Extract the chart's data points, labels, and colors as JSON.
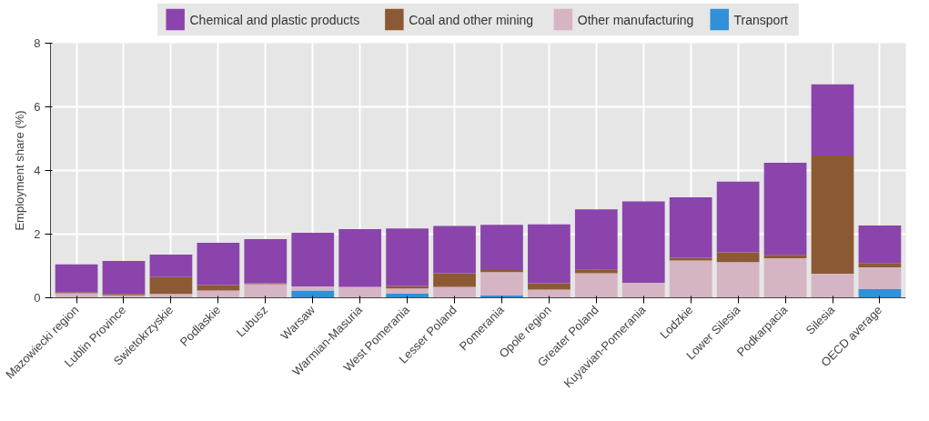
{
  "chart_data": {
    "type": "bar",
    "stacked": true,
    "ylabel": "Employment share (%)",
    "categories": [
      "Mazowiecki region",
      "Lublin Province",
      "Swietokrzyskie",
      "Podlaskie",
      "Lubusz",
      "Warsaw",
      "Warmian-Masuria",
      "West Pomerania",
      "Lesser Poland",
      "Pomerania",
      "Opole region",
      "Greater Poland",
      "Kuyavian-Pomerania",
      "Lodzkie",
      "Lower Silesia",
      "Podkarpacia",
      "Silesia",
      "OECD average"
    ],
    "series": [
      {
        "name": "Transport",
        "color": "#3090d8",
        "values": [
          0,
          0,
          0,
          0,
          0,
          0.23,
          0,
          0.13,
          0,
          0.08,
          0,
          0,
          0,
          0,
          0,
          0,
          0,
          0.28
        ]
      },
      {
        "name": "Other manufacturing",
        "color": "#d5b5c3",
        "values": [
          0.14,
          0.08,
          0.12,
          0.23,
          0.43,
          0.13,
          0.34,
          0.16,
          0.34,
          0.73,
          0.26,
          0.77,
          0.47,
          1.17,
          1.12,
          1.24,
          0.76,
          0.68
        ]
      },
      {
        "name": "Coal and other mining",
        "color": "#8b5a35",
        "values": [
          0.04,
          0.04,
          0.53,
          0.17,
          0.03,
          0,
          0,
          0.08,
          0.43,
          0.06,
          0.2,
          0.12,
          0,
          0.09,
          0.31,
          0.11,
          3.71,
          0.13
        ]
      },
      {
        "name": "Chemical and plastic products",
        "color": "#8b44ac",
        "values": [
          0.87,
          1.04,
          0.71,
          1.33,
          1.38,
          1.68,
          1.82,
          1.81,
          1.49,
          1.42,
          1.85,
          1.89,
          2.56,
          1.9,
          2.22,
          2.89,
          2.24,
          1.18
        ]
      }
    ],
    "ylim": [
      0,
      8
    ],
    "yticks": [
      0,
      2,
      4,
      6,
      8
    ],
    "grid": true,
    "legend": "top"
  }
}
